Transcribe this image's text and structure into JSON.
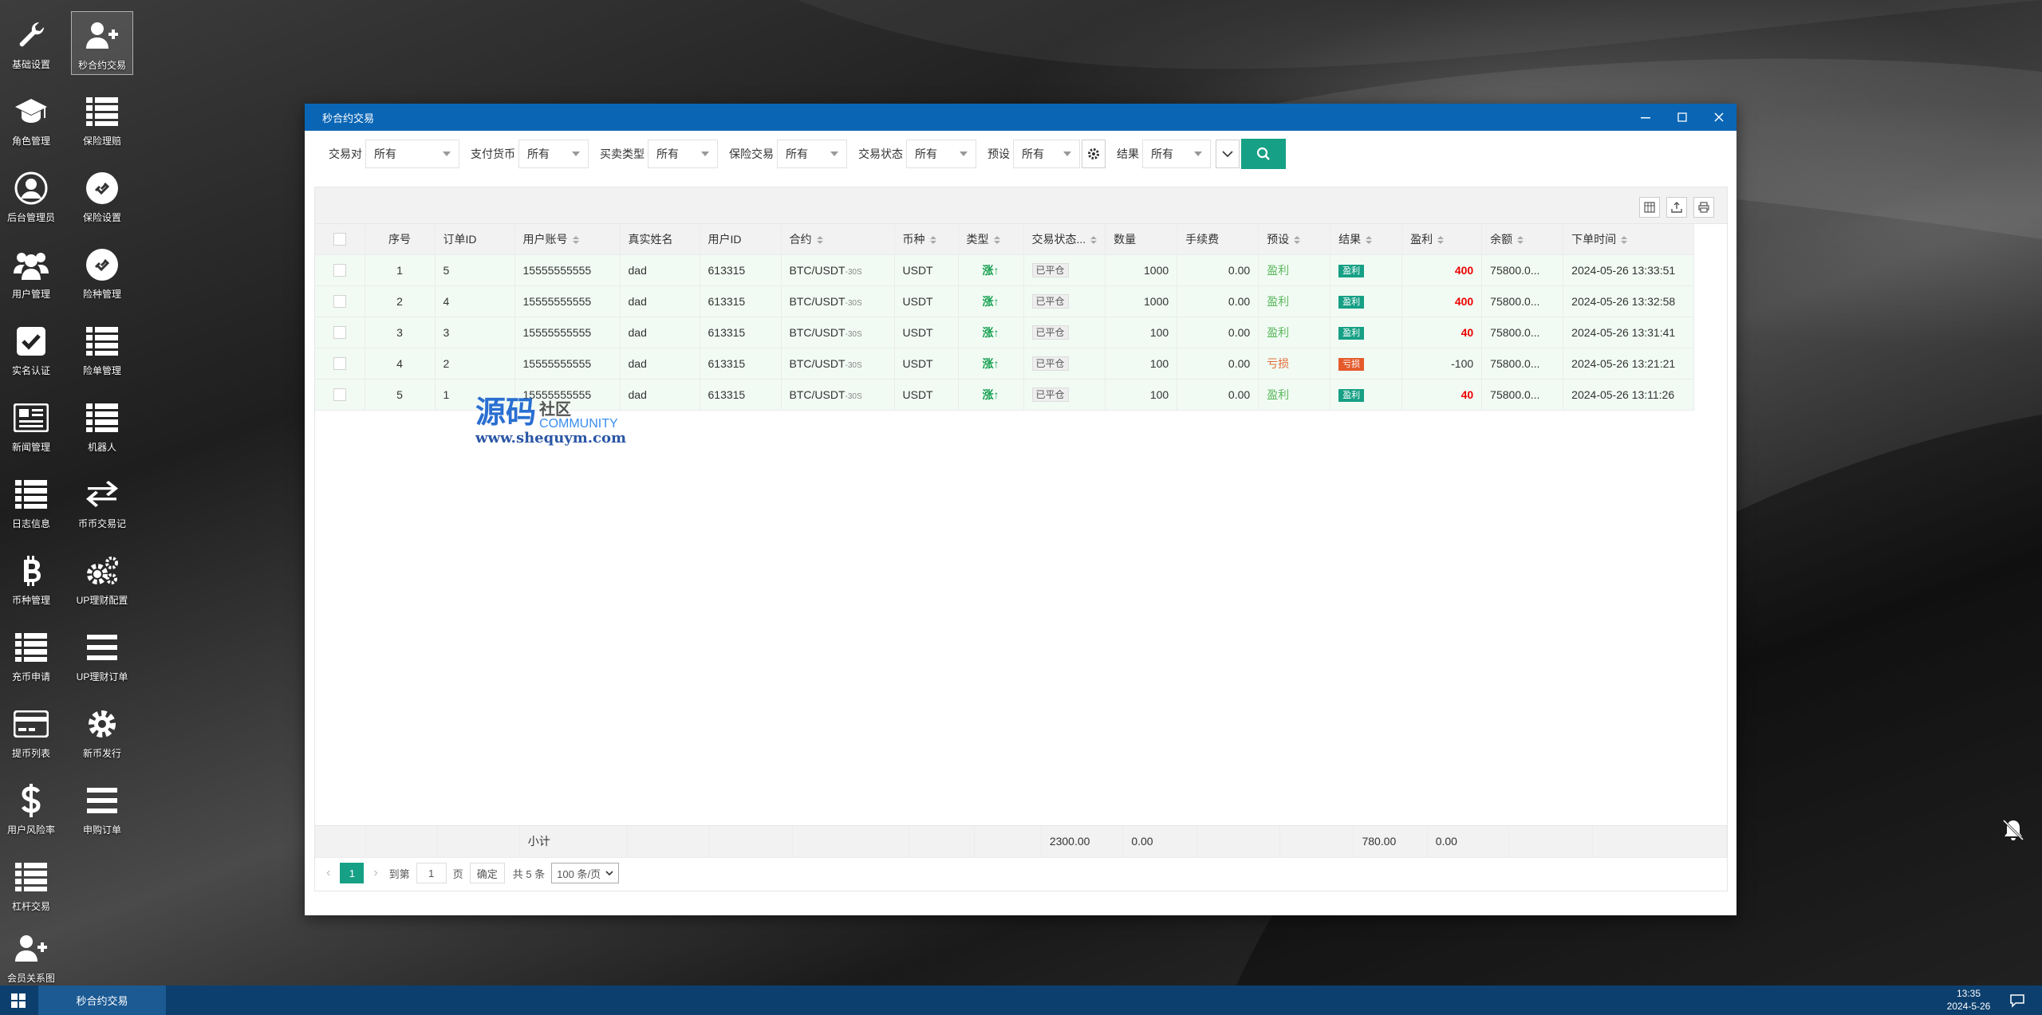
{
  "desktop": {
    "icons": [
      {
        "label": "基础设置",
        "icon": "wrench-icon"
      },
      {
        "label": "秒合约交易",
        "icon": "user-plus-icon"
      },
      {
        "label": "角色管理",
        "icon": "graduation-cap-icon"
      },
      {
        "label": "保险理赔",
        "icon": "list-icon"
      },
      {
        "label": "后台管理员",
        "icon": "user-circle-icon"
      },
      {
        "label": "保险设置",
        "icon": "link-circle-icon"
      },
      {
        "label": "用户管理",
        "icon": "users-icon"
      },
      {
        "label": "险种管理",
        "icon": "link-circle-icon"
      },
      {
        "label": "实名认证",
        "icon": "check-square-icon"
      },
      {
        "label": "险单管理",
        "icon": "list-icon"
      },
      {
        "label": "新闻管理",
        "icon": "newspaper-icon"
      },
      {
        "label": "机器人",
        "icon": "list-icon"
      },
      {
        "label": "日志信息",
        "icon": "list-icon"
      },
      {
        "label": "币币交易记",
        "icon": "exchange-icon"
      },
      {
        "label": "币种管理",
        "icon": "bitcoin-icon"
      },
      {
        "label": "UP理财配置",
        "icon": "cogs-icon"
      },
      {
        "label": "充币申请",
        "icon": "list-icon"
      },
      {
        "label": "UP理财订单",
        "icon": "bars-icon"
      },
      {
        "label": "提币列表",
        "icon": "credit-card-icon"
      },
      {
        "label": "新币发行",
        "icon": "gear-icon"
      },
      {
        "label": "用户风险率",
        "icon": "dollar-icon"
      },
      {
        "label": "申购订单",
        "icon": "bars-icon"
      },
      {
        "label": "杠杆交易",
        "icon": "list-icon"
      },
      {
        "label": "会员关系图",
        "icon": "user-plus-icon"
      }
    ]
  },
  "window": {
    "title": "秒合约交易"
  },
  "filters": [
    {
      "label": "交易对",
      "value": "所有"
    },
    {
      "label": "支付货币",
      "value": "所有"
    },
    {
      "label": "买卖类型",
      "value": "所有"
    },
    {
      "label": "保险交易",
      "value": "所有"
    },
    {
      "label": "交易状态",
      "value": "所有"
    },
    {
      "label": "预设",
      "value": "所有"
    },
    {
      "label": "结果",
      "value": "所有"
    }
  ],
  "table": {
    "headers": [
      "序号",
      "订单ID",
      "用户账号",
      "真实姓名",
      "用户ID",
      "合约",
      "币种",
      "类型",
      "交易状态...",
      "数量",
      "手续费",
      "预设",
      "结果",
      "盈利",
      "余额",
      "下单时间"
    ],
    "rows": [
      {
        "seq": "1",
        "order_id": "5",
        "account": "15555555555",
        "name": "dad",
        "user_id": "613315",
        "contract": "BTC/USDT",
        "contract_suffix": "-30S",
        "coin": "USDT",
        "type": "涨↑",
        "status": "已平仓",
        "qty": "1000",
        "fee": "0.00",
        "preset": "盈利",
        "result": "盈利",
        "profit": "400",
        "balance": "75800.0...",
        "time": "2024-05-26 13:33:51"
      },
      {
        "seq": "2",
        "order_id": "4",
        "account": "15555555555",
        "name": "dad",
        "user_id": "613315",
        "contract": "BTC/USDT",
        "contract_suffix": "-30S",
        "coin": "USDT",
        "type": "涨↑",
        "status": "已平仓",
        "qty": "1000",
        "fee": "0.00",
        "preset": "盈利",
        "result": "盈利",
        "profit": "400",
        "balance": "75800.0...",
        "time": "2024-05-26 13:32:58"
      },
      {
        "seq": "3",
        "order_id": "3",
        "account": "15555555555",
        "name": "dad",
        "user_id": "613315",
        "contract": "BTC/USDT",
        "contract_suffix": "-30S",
        "coin": "USDT",
        "type": "涨↑",
        "status": "已平仓",
        "qty": "100",
        "fee": "0.00",
        "preset": "盈利",
        "result": "盈利",
        "profit": "40",
        "balance": "75800.0...",
        "time": "2024-05-26 13:31:41"
      },
      {
        "seq": "4",
        "order_id": "2",
        "account": "15555555555",
        "name": "dad",
        "user_id": "613315",
        "contract": "BTC/USDT",
        "contract_suffix": "-30S",
        "coin": "USDT",
        "type": "涨↑",
        "status": "已平仓",
        "qty": "100",
        "fee": "0.00",
        "preset": "亏损",
        "result": "亏损",
        "profit": "-100",
        "balance": "75800.0...",
        "time": "2024-05-26 13:21:21"
      },
      {
        "seq": "5",
        "order_id": "1",
        "account": "15555555555",
        "name": "dad",
        "user_id": "613315",
        "contract": "BTC/USDT",
        "contract_suffix": "-30S",
        "coin": "USDT",
        "type": "涨↑",
        "status": "已平仓",
        "qty": "100",
        "fee": "0.00",
        "preset": "盈利",
        "result": "盈利",
        "profit": "40",
        "balance": "75800.0...",
        "time": "2024-05-26 13:11:26"
      }
    ],
    "summary": {
      "label": "小计",
      "qty": "2300.00",
      "fee": "0.00",
      "profit": "780.00",
      "balance": "0.00"
    }
  },
  "pager": {
    "current": "1",
    "goto_label": "到第",
    "goto_value": "1",
    "page_unit": "页",
    "confirm": "确定",
    "total": "共 5 条",
    "page_size": "100 条/页"
  },
  "watermark": {
    "big": "源码",
    "small": "社区",
    "en": "COMMUNITY",
    "url": "www.shequym.com"
  },
  "taskbar": {
    "active_task": "秒合约交易",
    "time": "13:35",
    "date": "2024-5-26"
  },
  "colors": {
    "titlebar": "#0a66b5",
    "accent": "#16a085",
    "taskbar": "#0c3f6e",
    "profit": "#ee0000",
    "loss_badge": "#e55a2b"
  }
}
